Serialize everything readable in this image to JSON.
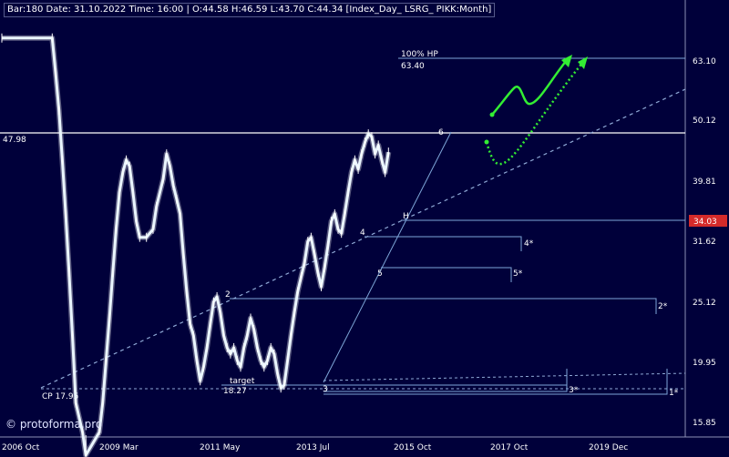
{
  "header": {
    "text": "Bar:180 Date: 31.10.2022 Time: 16:00 | O:44.58 H:46.59 L:43.70 C:44.34 [Index_Day_ LSRG_ PIKK:Month]"
  },
  "watermark": "© protoforma.pro",
  "colors": {
    "background": "#00003a",
    "price": "#eaf6ff",
    "level": "#7ea6d8",
    "trend": "#8fa9d6",
    "forecast": "#33ee33",
    "last_price_badge": "#d42a2a"
  },
  "chart_data": {
    "type": "line",
    "title": "",
    "xlabel": "",
    "ylabel": "",
    "x_axis_ticks": [
      "2006 Oct",
      "2009 Mar",
      "2011 May",
      "2013 Jul",
      "2015 Oct",
      "2017 Oct",
      "2019 Dec"
    ],
    "y_axis": {
      "scale": "log",
      "ylim": [
        15.2,
        68.5
      ],
      "position": "right",
      "ticks": [
        "63.10",
        "50.12",
        "39.81",
        "31.62",
        "25.12",
        "19.95",
        "15.85"
      ]
    },
    "last_price": {
      "label": "34.03",
      "value": 34.03
    },
    "series": [
      {
        "points": [
          [
            "2006-10",
            68.5
          ],
          [
            "2008-01",
            68.5
          ],
          [
            "2008-02",
            60
          ],
          [
            "2008-03",
            52
          ],
          [
            "2008-04",
            43
          ],
          [
            "2008-05",
            35
          ],
          [
            "2008-06",
            28
          ],
          [
            "2008-07",
            22
          ],
          [
            "2008-08",
            17
          ],
          [
            "2008-10",
            15.2
          ],
          [
            "2008-11",
            13.5
          ],
          [
            "2009-03",
            15.2
          ],
          [
            "2009-04",
            17
          ],
          [
            "2009-05",
            20
          ],
          [
            "2009-06",
            23.5
          ],
          [
            "2009-07",
            28
          ],
          [
            "2009-08",
            33
          ],
          [
            "2009-09",
            38
          ],
          [
            "2009-10",
            41
          ],
          [
            "2009-11",
            43
          ],
          [
            "2009-12",
            42
          ],
          [
            "2010-01",
            38
          ],
          [
            "2010-02",
            34
          ],
          [
            "2010-03",
            32
          ],
          [
            "2010-05",
            32
          ],
          [
            "2010-07",
            33
          ],
          [
            "2010-08",
            36
          ],
          [
            "2010-10",
            40
          ],
          [
            "2010-11",
            44
          ],
          [
            "2010-12",
            42
          ],
          [
            "2011-01",
            39
          ],
          [
            "2011-02",
            37
          ],
          [
            "2011-03",
            35
          ],
          [
            "2011-04",
            30
          ],
          [
            "2011-05",
            26
          ],
          [
            "2011-06",
            23
          ],
          [
            "2011-07",
            22
          ],
          [
            "2011-08",
            20
          ],
          [
            "2011-09",
            18.5
          ],
          [
            "2011-10",
            19.5
          ],
          [
            "2011-11",
            21
          ],
          [
            "2011-12",
            23
          ],
          [
            "2012-01",
            25
          ],
          [
            "2012-02",
            25.5
          ],
          [
            "2012-03",
            24
          ],
          [
            "2012-04",
            22
          ],
          [
            "2012-05",
            21
          ],
          [
            "2012-06",
            20.5
          ],
          [
            "2012-07",
            21
          ],
          [
            "2012-08",
            20
          ],
          [
            "2012-09",
            19.5
          ],
          [
            "2012-10",
            21
          ],
          [
            "2012-11",
            22
          ],
          [
            "2012-12",
            23.5
          ],
          [
            "2013-01",
            22.5
          ],
          [
            "2013-02",
            21
          ],
          [
            "2013-03",
            20
          ],
          [
            "2013-04",
            19.5
          ],
          [
            "2013-05",
            20
          ],
          [
            "2013-06",
            21
          ],
          [
            "2013-07",
            20.5
          ],
          [
            "2013-08",
            19
          ],
          [
            "2013-09",
            18
          ],
          [
            "2013-10",
            18.2
          ],
          [
            "2013-11",
            20
          ],
          [
            "2013-12",
            22
          ],
          [
            "2014-01",
            24
          ],
          [
            "2014-02",
            26
          ],
          [
            "2014-03",
            27.5
          ],
          [
            "2014-04",
            29
          ],
          [
            "2014-05",
            31.5
          ],
          [
            "2014-06",
            32
          ],
          [
            "2014-07",
            30
          ],
          [
            "2014-08",
            28
          ],
          [
            "2014-09",
            26.5
          ],
          [
            "2014-10",
            28.5
          ],
          [
            "2014-11",
            31
          ],
          [
            "2014-12",
            34
          ],
          [
            "2015-01",
            35
          ],
          [
            "2015-02",
            33
          ],
          [
            "2015-03",
            32.5
          ],
          [
            "2015-04",
            35
          ],
          [
            "2015-05",
            38
          ],
          [
            "2015-06",
            41
          ],
          [
            "2015-07",
            43
          ],
          [
            "2015-08",
            41.5
          ],
          [
            "2015-09",
            44
          ],
          [
            "2015-10",
            46
          ],
          [
            "2015-11",
            47.5
          ],
          [
            "2015-12",
            47
          ],
          [
            "2016-01",
            44
          ],
          [
            "2016-02",
            45.5
          ],
          [
            "2016-03",
            43
          ],
          [
            "2016-04",
            41
          ],
          [
            "2016-05",
            44.3
          ]
        ]
      }
    ],
    "levels": [
      {
        "label": "47.98",
        "value": 47.98
      },
      {
        "label": "100% HP",
        "value": 63.4
      },
      {
        "label": "63.40",
        "value": 63.4
      },
      {
        "label": "target",
        "value": 18.27
      },
      {
        "label": "18.27",
        "value": 18.27
      },
      {
        "label": "CP 17.95",
        "value": 17.95
      }
    ],
    "wave_labels": [
      "2",
      "3",
      "4",
      "5",
      "6",
      "H",
      "2*",
      "4*",
      "5*",
      "3*",
      "1*"
    ],
    "forecast": [
      "solid",
      "dotted"
    ]
  }
}
